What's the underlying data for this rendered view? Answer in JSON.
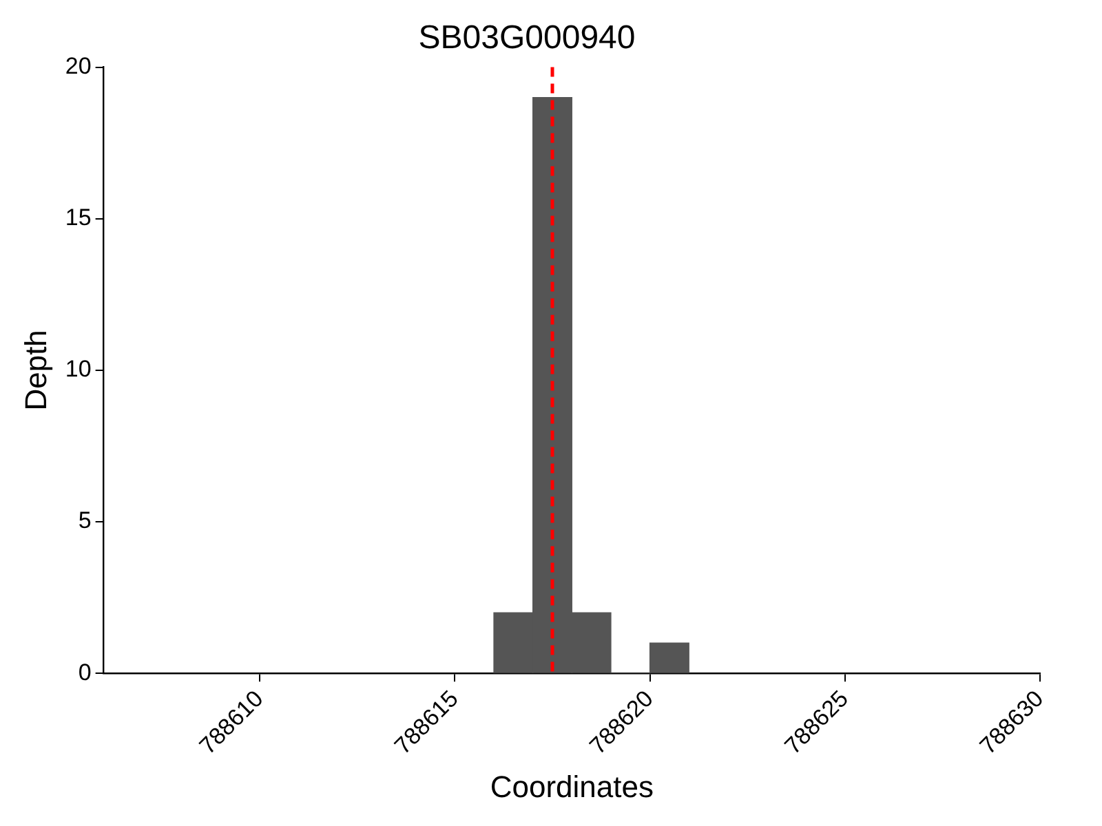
{
  "chart_data": {
    "type": "histogram",
    "title": "SB03G000940",
    "xlabel": "Coordinates",
    "ylabel": "Depth",
    "bins": [
      788616,
      788617,
      788618,
      788619,
      788620,
      788621
    ],
    "values": [
      2,
      19,
      2,
      0,
      1
    ],
    "color": "#555555",
    "xlim": [
      788606,
      788630
    ],
    "xticks": [
      788610,
      788615,
      788620,
      788625,
      788630
    ],
    "ylim": [
      0,
      20
    ],
    "yticks": [
      0,
      5,
      10,
      15,
      20
    ],
    "ref_lines": [
      {
        "axis": "x",
        "value": 788617.5,
        "color": "#ff0000",
        "line_style": "dashed"
      }
    ],
    "grid": false,
    "legend": false
  }
}
